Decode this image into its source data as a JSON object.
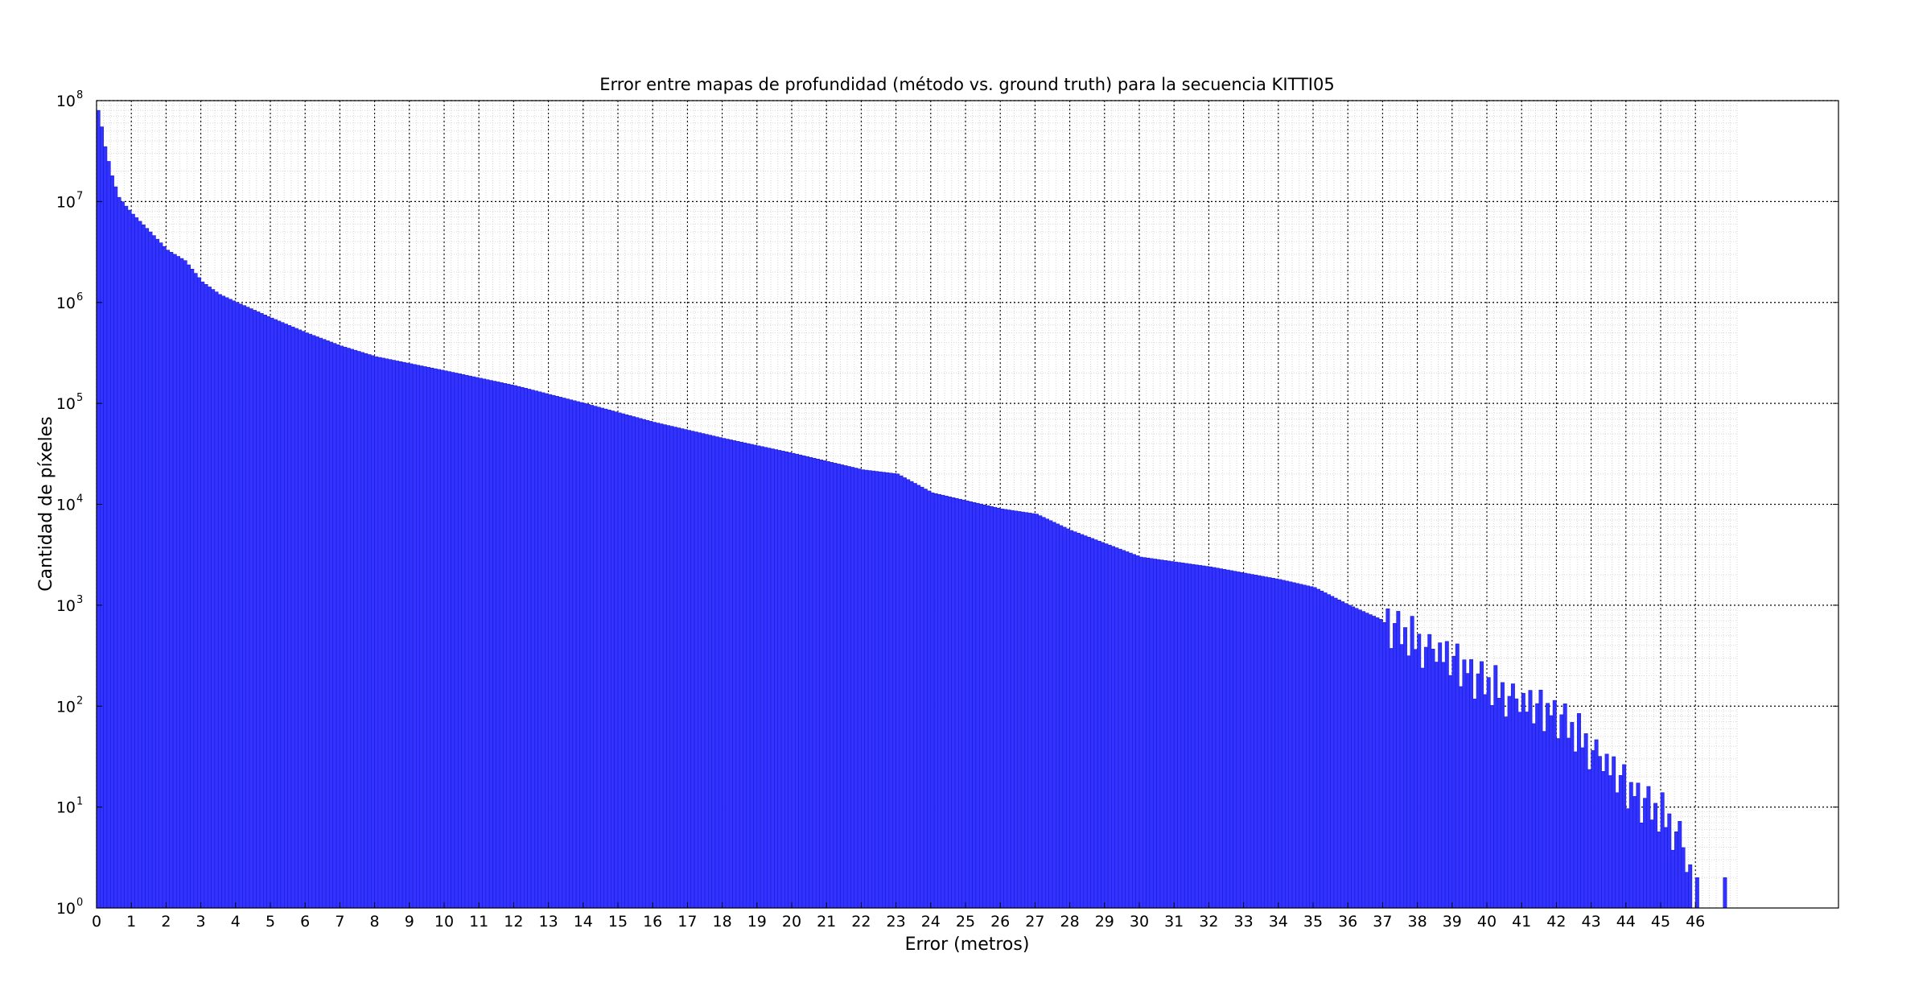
{
  "chart_data": {
    "type": "bar",
    "title": "Error entre mapas de profundidad (método vs. ground truth) para la secuencia KITTI05",
    "xlabel": "Error (metros)",
    "ylabel": "Cantidad de píxeles",
    "yscale": "log",
    "ylim": [
      1,
      100000000
    ],
    "xlim": [
      0,
      50
    ],
    "grid": true,
    "bar_color": "#3333ff",
    "bin_width": 0.1,
    "x_ticks": [
      "0",
      "1",
      "2",
      "3",
      "4",
      "5",
      "6",
      "7",
      "8",
      "9",
      "10",
      "11",
      "12",
      "13",
      "14",
      "15",
      "16",
      "17",
      "18",
      "19",
      "20",
      "21",
      "22",
      "23",
      "24",
      "25",
      "26",
      "27",
      "28",
      "29",
      "30",
      "31",
      "32",
      "33",
      "34",
      "35",
      "36",
      "37",
      "38",
      "39",
      "40",
      "41",
      "42",
      "43",
      "44",
      "45",
      "46"
    ],
    "y_ticks": [
      {
        "base": "10",
        "exp": "0"
      },
      {
        "base": "10",
        "exp": "1"
      },
      {
        "base": "10",
        "exp": "2"
      },
      {
        "base": "10",
        "exp": "3"
      },
      {
        "base": "10",
        "exp": "4"
      },
      {
        "base": "10",
        "exp": "5"
      },
      {
        "base": "10",
        "exp": "6"
      },
      {
        "base": "10",
        "exp": "7"
      },
      {
        "base": "10",
        "exp": "8"
      }
    ],
    "profile_x": [
      0,
      0.1,
      0.2,
      0.3,
      0.4,
      0.5,
      0.6,
      0.8,
      1.0,
      1.5,
      2.0,
      2.5,
      3.0,
      3.5,
      4.0,
      5.0,
      6.0,
      7.0,
      8.0,
      10.0,
      12.0,
      14.0,
      16.0,
      18.0,
      20.0,
      22.0,
      23.0,
      24.0,
      26.0,
      27.0,
      28.0,
      30.0,
      32.0,
      34.0,
      35.0,
      36.0,
      37.0,
      38.0,
      39.0,
      40.0,
      41.0,
      42.0,
      43.0,
      44.0,
      45.0,
      45.5,
      45.8
    ],
    "profile_y": [
      80000000,
      55000000,
      35000000,
      25000000,
      18000000,
      14000000,
      11000000,
      9000000,
      7500000,
      5000000,
      3300000,
      2600000,
      1600000,
      1200000,
      1000000,
      700000,
      500000,
      370000,
      290000,
      210000,
      150000,
      100000,
      65000,
      45000,
      32000,
      22000,
      20000,
      13000,
      9000,
      8000,
      5500,
      3000,
      2400,
      1800,
      1500,
      1000,
      700,
      400,
      270,
      160,
      100,
      80,
      35,
      15,
      8,
      5,
      2
    ],
    "noise": [
      0.02,
      -0.05,
      0.08,
      -0.03,
      0.11,
      -0.09,
      0.04,
      0.13,
      -0.12,
      0.06,
      -0.01,
      0.09,
      -0.14,
      0.03,
      0.12,
      -0.07,
      0.05,
      -0.11,
      0.15,
      -0.04,
      0.07,
      -0.13,
      0.01,
      0.1
    ],
    "noise_start": 37.0,
    "extra_bars": [
      {
        "x": 46.0,
        "y": 2
      },
      {
        "x": 46.8,
        "y": 2
      }
    ]
  }
}
